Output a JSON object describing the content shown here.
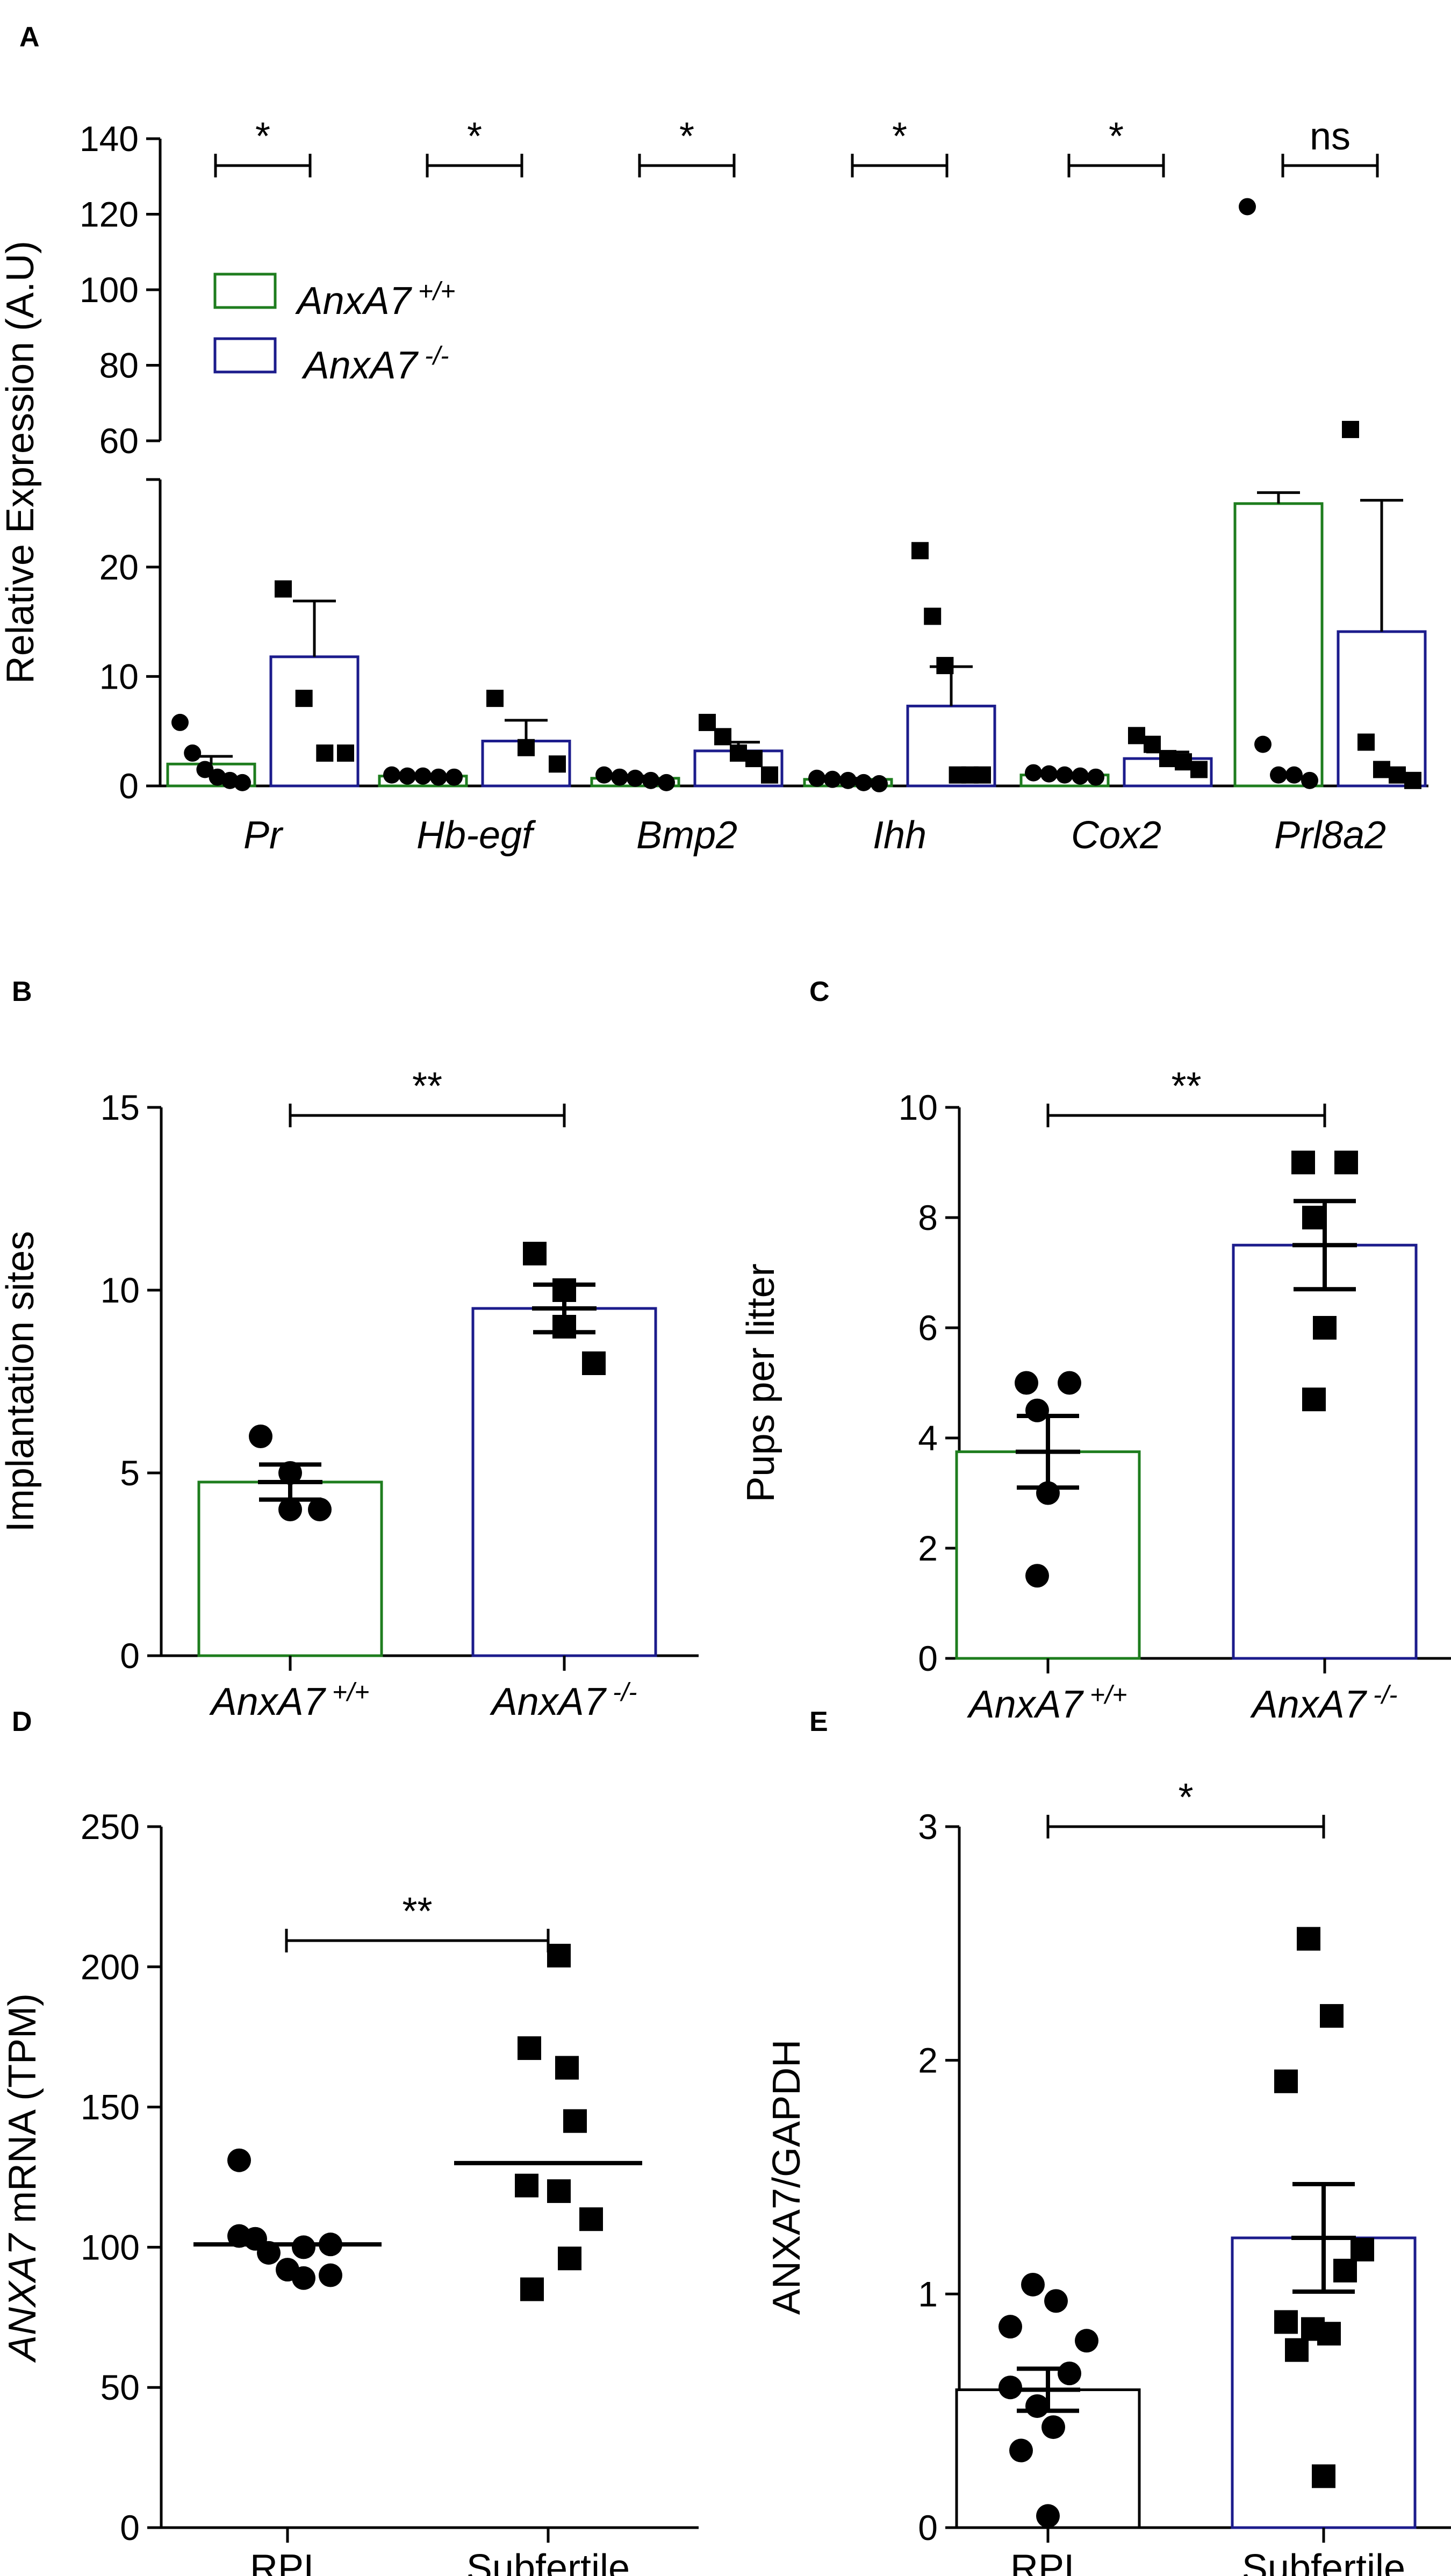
{
  "chart_data": [
    {
      "panel": "A",
      "type": "bar",
      "ylabel": "Relative Expression (A.U)",
      "ylim_lower": [
        0,
        28
      ],
      "ylim_upper": [
        60,
        140
      ],
      "yticks_lower": [
        0,
        10,
        20
      ],
      "yticks_upper": [
        60,
        80,
        100,
        120,
        140
      ],
      "categories": [
        "Pr",
        "Hb-egf",
        "Bmp2",
        "Ihh",
        "Cox2",
        "Prl8a2"
      ],
      "significance": [
        "*",
        "*",
        "*",
        "*",
        "*",
        "ns"
      ],
      "legend": [
        {
          "gene": "AnxA7",
          "genotype": "+/+",
          "color": "#1e7d1e"
        },
        {
          "gene": "AnxA7",
          "genotype": "-/-",
          "color": "#1c1c8c"
        }
      ],
      "series": [
        {
          "name": "AnxA7 +/+",
          "color": "#1e7d1e",
          "marker": "circle",
          "means": [
            2.0,
            0.9,
            0.7,
            0.6,
            1.0,
            25.8
          ],
          "sem": [
            0.7,
            0.1,
            0.2,
            0.1,
            0.1,
            1.0
          ],
          "points": [
            [
              5.8,
              3.0,
              1.5,
              0.8,
              0.5,
              0.3
            ],
            [
              1.0,
              0.9,
              0.9,
              0.8,
              0.8
            ],
            [
              1.0,
              0.8,
              0.7,
              0.5,
              0.3
            ],
            [
              0.7,
              0.6,
              0.5,
              0.3,
              0.2
            ],
            [
              1.2,
              1.1,
              1.0,
              0.9,
              0.8
            ],
            [
              122,
              3.8,
              1.0,
              1.0,
              0.5
            ]
          ]
        },
        {
          "name": "AnxA7 -/-",
          "color": "#1c1c8c",
          "marker": "square",
          "means": [
            11.8,
            4.1,
            3.2,
            7.3,
            2.5,
            14.1
          ],
          "sem": [
            5.1,
            1.9,
            0.8,
            3.6,
            0.6,
            12.0
          ],
          "points": [
            [
              18.0,
              8.0,
              3.0,
              3.0
            ],
            [
              8.0,
              3.5,
              2.0
            ],
            [
              5.8,
              4.5,
              3.0,
              2.5,
              1.0
            ],
            [
              21.5,
              15.5,
              11.0,
              1.0,
              1.0,
              1.0
            ],
            [
              4.6,
              3.8,
              2.5,
              2.2,
              1.5
            ],
            [
              63,
              4.0,
              1.5,
              1.0,
              0.5
            ]
          ]
        }
      ]
    },
    {
      "panel": "B",
      "type": "bar",
      "ylabel": "Implantation sites",
      "ylim": [
        0,
        15
      ],
      "yticks": [
        0,
        5,
        10,
        15
      ],
      "significance": "**",
      "groups": [
        {
          "gene": "AnxA7",
          "genotype": "+/+",
          "color": "#1e7d1e",
          "marker": "circle",
          "mean": 4.75,
          "sem": 0.48,
          "points": [
            6,
            5,
            4,
            4
          ]
        },
        {
          "gene": "AnxA7",
          "genotype": "-/-",
          "color": "#1c1c8c",
          "marker": "square",
          "mean": 9.5,
          "sem": 0.65,
          "points": [
            11,
            10,
            9,
            8
          ]
        }
      ]
    },
    {
      "panel": "C",
      "type": "bar",
      "ylabel": "Pups per litter",
      "ylim": [
        0,
        10
      ],
      "yticks": [
        0,
        2,
        4,
        6,
        8,
        10
      ],
      "significance": "**",
      "groups": [
        {
          "gene": "AnxA7",
          "genotype": "+/+",
          "color": "#1e7d1e",
          "marker": "circle",
          "mean": 3.75,
          "sem": 0.65,
          "points": [
            5,
            5,
            4.5,
            3,
            1.5
          ]
        },
        {
          "gene": "AnxA7",
          "genotype": "-/-",
          "color": "#1c1c8c",
          "marker": "square",
          "mean": 7.5,
          "sem": 0.8,
          "points": [
            9,
            9,
            8,
            6,
            4.7
          ]
        }
      ]
    },
    {
      "panel": "D",
      "type": "scatter",
      "ylabel_gene": "ANXA7",
      "ylabel_rest": " mRNA (TPM)",
      "ylim": [
        0,
        250
      ],
      "yticks": [
        0,
        50,
        100,
        150,
        200,
        250
      ],
      "significance": "**",
      "groups": [
        {
          "label": "RPL",
          "marker": "circle",
          "mean": 101,
          "points": [
            131,
            104,
            103,
            101,
            100,
            98,
            92,
            90,
            89
          ]
        },
        {
          "label": "Subfertile",
          "marker": "square",
          "mean": 130,
          "points": [
            204,
            171,
            164,
            145,
            122,
            120,
            110,
            96,
            85
          ]
        }
      ]
    },
    {
      "panel": "E",
      "type": "bar",
      "ylabel": "ANXA7/GAPDH",
      "ylim": [
        0,
        3
      ],
      "yticks": [
        0,
        1,
        2,
        3
      ],
      "significance": "*",
      "groups": [
        {
          "label": "RPL",
          "color": "#000000",
          "marker": "circle",
          "mean": 0.59,
          "sem": 0.09,
          "points": [
            1.04,
            0.97,
            0.86,
            0.8,
            0.66,
            0.6,
            0.52,
            0.43,
            0.33,
            0.05
          ]
        },
        {
          "label": "Subfertile",
          "color": "#1c1c8c",
          "marker": "square",
          "mean": 1.24,
          "sem": 0.23,
          "points": [
            2.52,
            2.19,
            1.91,
            1.19,
            1.1,
            0.88,
            0.85,
            0.83,
            0.76,
            0.22
          ]
        }
      ]
    }
  ]
}
